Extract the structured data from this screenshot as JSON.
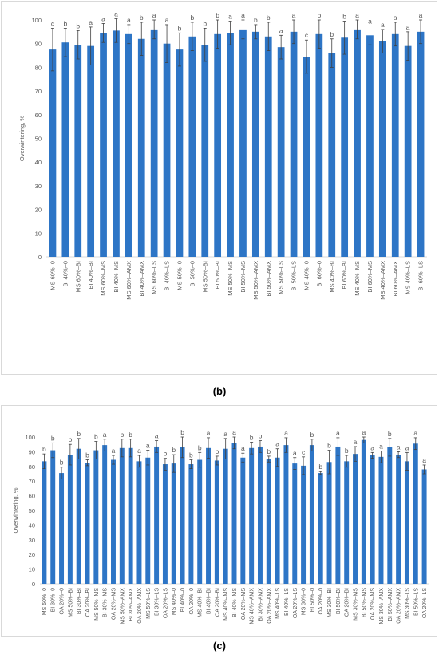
{
  "chart_data": [
    {
      "type": "bar",
      "panel_label": "(b)",
      "y_label": "Overwintering, %",
      "color": "#2d75c6",
      "grid": false,
      "ylim": [
        0,
        100
      ],
      "yticks": [
        0,
        10,
        20,
        30,
        40,
        50,
        60,
        70,
        80,
        90,
        100
      ],
      "categories": [
        "MS 60%–0",
        "BI 40%–0",
        "MS 60%–BI",
        "BI 40%–BI",
        "MS 60%–MS",
        "BI 40%–MS",
        "MS 60%–AMX",
        "BI 40%–AMX",
        "MS 60%–LS",
        "BI 40%–LS",
        "MS 50%–0",
        "BI 50%–0",
        "MS 50%–BI",
        "BI 50%–BI",
        "MS 50%–MS",
        "BI 50%–MS",
        "MS 50%–AMX",
        "BI 50%–AMX",
        "MS 50%–LS",
        "BI 50%–LS",
        "MS 40%–0",
        "BI 60%–0",
        "MS 40%–BI",
        "BI 60%–BI",
        "MS 40%–MS",
        "BI 60%–MS",
        "MS 40%–AMX",
        "BI 60%–AMX",
        "MS 40%–LS",
        "BI 60%–LS"
      ],
      "values": [
        87.5,
        90.5,
        89.5,
        89,
        94.5,
        95.5,
        94,
        92,
        96,
        90,
        87.5,
        93,
        89.5,
        94,
        94.5,
        96,
        95,
        93,
        88.5,
        95,
        84.5,
        94,
        86,
        92.5,
        96,
        93.5,
        91,
        94,
        89,
        95
      ],
      "errors": [
        9,
        6,
        6,
        8,
        4,
        5,
        4,
        7,
        4,
        8,
        7,
        6,
        7,
        6,
        5,
        4,
        3,
        6,
        5,
        5,
        7,
        6,
        6,
        7,
        4,
        4,
        5,
        5,
        6,
        5
      ],
      "letters": [
        "c",
        "b",
        "b",
        "a",
        "a",
        "a",
        "a",
        "b",
        "a",
        "a",
        "b",
        "b",
        "b",
        "b",
        "a",
        "a",
        "b",
        "b",
        "a",
        "a",
        "c",
        "b",
        "b",
        "b",
        "a",
        "a",
        "a",
        "a",
        "a",
        "a"
      ]
    },
    {
      "type": "bar",
      "panel_label": "(c)",
      "y_label": "Overwintering, %",
      "color": "#2d75c6",
      "grid": false,
      "ylim": [
        0,
        100
      ],
      "yticks": [
        0,
        10,
        20,
        30,
        40,
        50,
        60,
        70,
        80,
        90,
        100
      ],
      "categories": [
        "MS 50%–0",
        "BI 30%–0",
        "OA 20%–0",
        "MS 50%–BI",
        "BI 30%–BI",
        "OA 20%–BI",
        "MS 50%–MS",
        "BI 30%–MS",
        "OA 20%–MS",
        "MS 50%–AMX",
        "BI 30%–AMX",
        "OA 20%–AMX",
        "MS 50%–LS",
        "BI 30%–LS",
        "OA 20%–LS",
        "MS 40%–0",
        "BI 40%–0",
        "OA 20%–0",
        "MS 40%–BI",
        "BI 40%–BI",
        "OA 20%–BI",
        "MS 40%–MS",
        "BI 40%–MS",
        "OA 20%–MS",
        "MS 40%–AMX",
        "BI 30%–AMX",
        "OA 20%–AMX",
        "MS 40%–LS",
        "BI 40%–LS",
        "OA 20%–LS",
        "MS 30%–0",
        "BI 50%–0",
        "OA 20%–0",
        "MS 30%–BI",
        "BI 50%–BI",
        "OA 20%–BI",
        "MS 30%–MS",
        "BI 50%–MS",
        "OA 20%–MS",
        "MS 30%–AMX",
        "BI 50%–AMX",
        "OA 20%–AMX",
        "MS 30%–LS",
        "BI 50%–LS",
        "OA 20%–LS"
      ],
      "values": [
        83.5,
        91,
        75.5,
        88,
        92,
        82.5,
        91,
        94.5,
        84.5,
        92.5,
        92.5,
        83.5,
        86,
        93.5,
        81.5,
        82,
        93,
        81.5,
        84.5,
        92.5,
        84,
        92,
        96,
        86,
        92.5,
        93.5,
        85,
        86,
        94.5,
        82,
        80.5,
        94.5,
        75.5,
        83,
        93.5,
        83.5,
        88.5,
        98,
        87.5,
        86.5,
        93,
        88,
        83.5,
        95.5,
        78
      ],
      "errors": [
        5,
        5,
        4,
        7,
        7,
        2,
        6,
        4,
        3,
        6,
        6,
        4,
        5,
        4,
        4,
        6,
        7,
        3,
        5,
        7,
        3,
        7,
        4,
        3,
        4,
        4,
        2,
        6,
        5,
        4,
        6,
        4,
        1,
        8,
        6,
        4,
        5,
        2,
        2,
        4,
        6,
        2,
        6,
        4,
        3
      ],
      "letters": [
        "b",
        "b",
        "b",
        "b",
        "b",
        "b",
        "b",
        "a",
        "a",
        "b",
        "b",
        "a",
        "a",
        "a",
        "b",
        "b",
        "b",
        "b",
        "b",
        "a",
        "b",
        "a",
        "a",
        "a",
        "b",
        "b",
        "b",
        "a",
        "a",
        "a",
        "c",
        "b",
        "b",
        "b",
        "a",
        "b",
        "a",
        "a",
        "a",
        "a",
        "b",
        "a",
        "a",
        "a",
        "a"
      ]
    }
  ]
}
